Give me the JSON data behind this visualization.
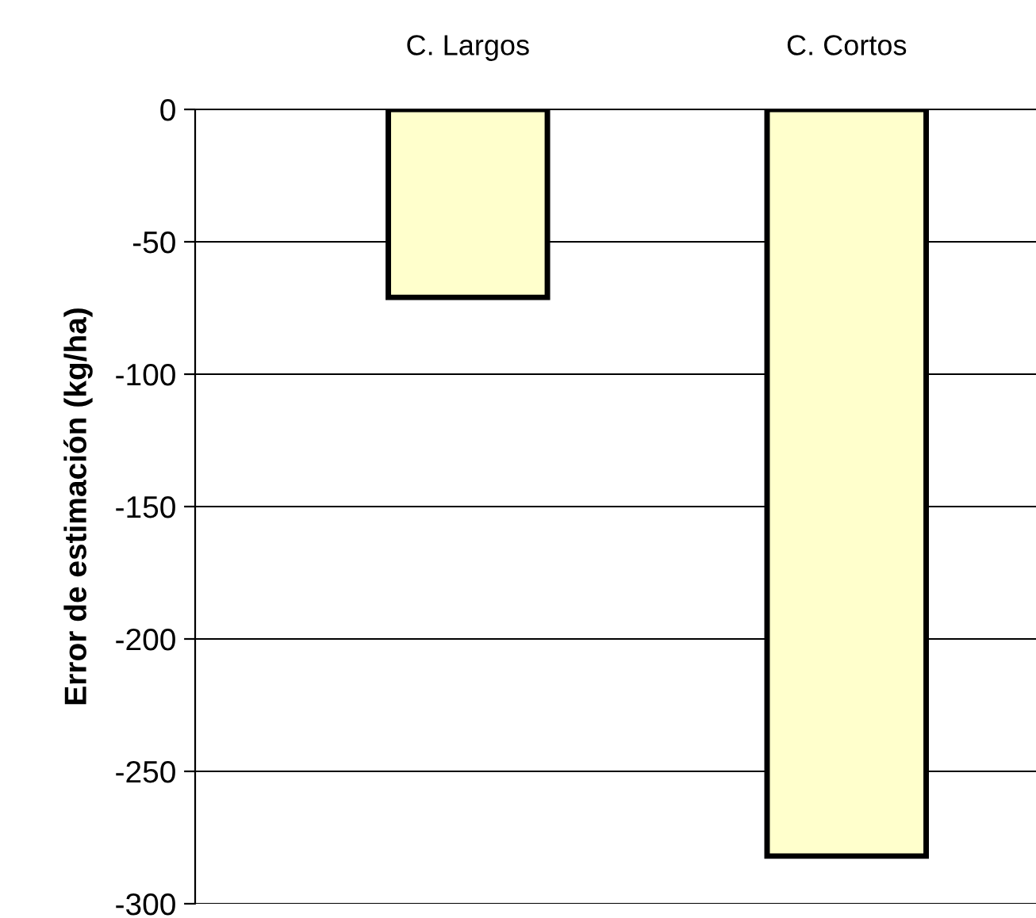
{
  "chart_data": {
    "type": "bar",
    "categories": [
      "C. Largos",
      "C. Cortos"
    ],
    "values": [
      -71,
      -282
    ],
    "color": "#ffffcc",
    "ylabel": "Error de estimación (kg/ha)",
    "ylim": [
      -300,
      0
    ],
    "yticks": [
      0,
      -50,
      -100,
      -150,
      -200,
      -250,
      -300
    ],
    "grid": "y",
    "legend": false
  }
}
